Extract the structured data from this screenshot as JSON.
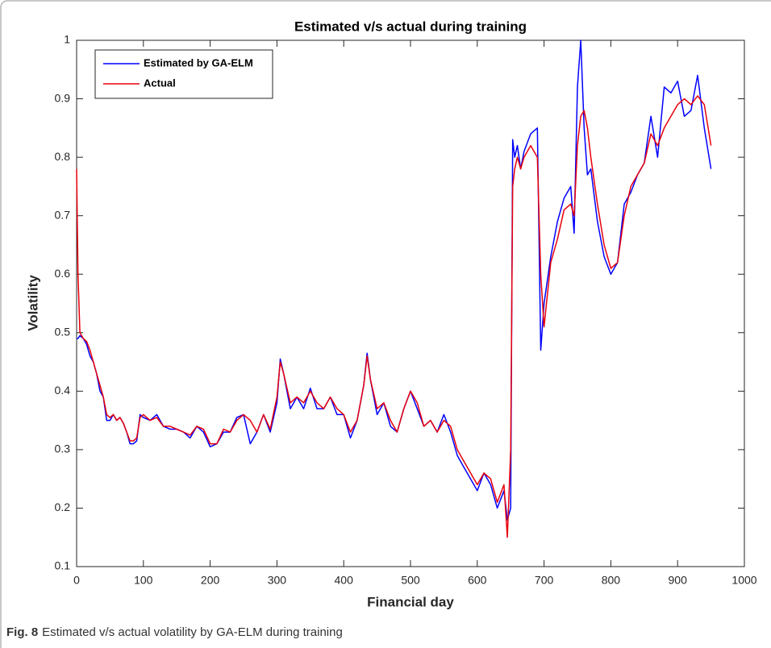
{
  "chart_data": {
    "type": "line",
    "title": "Estimated v/s actual during training",
    "xlabel": "Financial day",
    "ylabel": "Volatility",
    "x": [
      0,
      2,
      5,
      10,
      15,
      20,
      25,
      30,
      35,
      40,
      45,
      50,
      55,
      60,
      65,
      70,
      75,
      80,
      85,
      90,
      95,
      100,
      110,
      120,
      130,
      140,
      150,
      160,
      170,
      180,
      190,
      200,
      210,
      220,
      230,
      240,
      250,
      260,
      270,
      280,
      290,
      300,
      305,
      310,
      320,
      330,
      340,
      350,
      360,
      370,
      380,
      390,
      400,
      410,
      420,
      430,
      435,
      440,
      450,
      460,
      470,
      480,
      490,
      500,
      510,
      520,
      530,
      540,
      550,
      560,
      570,
      580,
      590,
      600,
      610,
      620,
      630,
      640,
      645,
      650,
      653,
      656,
      660,
      665,
      670,
      680,
      690,
      695,
      700,
      710,
      720,
      730,
      740,
      745,
      750,
      755,
      760,
      765,
      770,
      780,
      790,
      800,
      810,
      820,
      830,
      840,
      850,
      860,
      870,
      880,
      890,
      900,
      910,
      920,
      930,
      940,
      950
    ],
    "series": [
      {
        "name": "Estimated by GA-ELM",
        "color": "#0000ff",
        "values": [
          0.49,
          0.49,
          0.495,
          0.49,
          0.48,
          0.46,
          0.45,
          0.43,
          0.4,
          0.39,
          0.35,
          0.35,
          0.36,
          0.35,
          0.355,
          0.345,
          0.33,
          0.31,
          0.31,
          0.315,
          0.36,
          0.355,
          0.35,
          0.36,
          0.34,
          0.335,
          0.335,
          0.33,
          0.32,
          0.34,
          0.33,
          0.305,
          0.31,
          0.33,
          0.33,
          0.355,
          0.36,
          0.31,
          0.33,
          0.36,
          0.33,
          0.38,
          0.455,
          0.43,
          0.37,
          0.39,
          0.37,
          0.405,
          0.37,
          0.37,
          0.39,
          0.36,
          0.36,
          0.32,
          0.35,
          0.41,
          0.465,
          0.42,
          0.36,
          0.38,
          0.34,
          0.33,
          0.37,
          0.4,
          0.37,
          0.34,
          0.35,
          0.33,
          0.36,
          0.33,
          0.29,
          0.27,
          0.25,
          0.23,
          0.26,
          0.24,
          0.2,
          0.23,
          0.18,
          0.2,
          0.83,
          0.8,
          0.82,
          0.78,
          0.81,
          0.84,
          0.85,
          0.47,
          0.55,
          0.63,
          0.69,
          0.73,
          0.75,
          0.67,
          0.92,
          1.0,
          0.85,
          0.77,
          0.78,
          0.69,
          0.63,
          0.6,
          0.62,
          0.72,
          0.74,
          0.77,
          0.79,
          0.87,
          0.8,
          0.92,
          0.91,
          0.93,
          0.87,
          0.88,
          0.94,
          0.85,
          0.78
        ]
      },
      {
        "name": "Actual",
        "color": "#e8000b",
        "values": [
          0.78,
          0.6,
          0.5,
          0.49,
          0.485,
          0.47,
          0.45,
          0.43,
          0.41,
          0.39,
          0.36,
          0.355,
          0.36,
          0.35,
          0.355,
          0.345,
          0.33,
          0.315,
          0.315,
          0.32,
          0.355,
          0.36,
          0.35,
          0.355,
          0.34,
          0.34,
          0.335,
          0.33,
          0.325,
          0.34,
          0.335,
          0.31,
          0.31,
          0.335,
          0.33,
          0.35,
          0.36,
          0.35,
          0.33,
          0.36,
          0.335,
          0.39,
          0.45,
          0.43,
          0.38,
          0.39,
          0.38,
          0.4,
          0.38,
          0.37,
          0.39,
          0.37,
          0.36,
          0.33,
          0.35,
          0.41,
          0.46,
          0.42,
          0.37,
          0.38,
          0.35,
          0.33,
          0.37,
          0.4,
          0.38,
          0.34,
          0.35,
          0.33,
          0.35,
          0.34,
          0.3,
          0.28,
          0.26,
          0.24,
          0.26,
          0.25,
          0.21,
          0.24,
          0.15,
          0.3,
          0.75,
          0.78,
          0.8,
          0.78,
          0.8,
          0.82,
          0.8,
          0.6,
          0.51,
          0.62,
          0.66,
          0.71,
          0.72,
          0.7,
          0.82,
          0.87,
          0.88,
          0.85,
          0.8,
          0.72,
          0.65,
          0.61,
          0.62,
          0.7,
          0.75,
          0.77,
          0.79,
          0.84,
          0.82,
          0.85,
          0.87,
          0.89,
          0.9,
          0.89,
          0.905,
          0.89,
          0.82
        ]
      }
    ],
    "xlim": [
      0,
      1000
    ],
    "xticks": [
      0,
      100,
      200,
      300,
      400,
      500,
      600,
      700,
      800,
      900,
      1000
    ],
    "ylim": [
      0.1,
      1
    ],
    "yticks": [
      0.1,
      0.2,
      0.3,
      0.4,
      0.5,
      0.6,
      0.7,
      0.8,
      0.9,
      1
    ],
    "legend": "upper left"
  },
  "caption": {
    "label": "Fig. 8",
    "text": "Estimated v/s actual volatility by GA-ELM during training"
  }
}
